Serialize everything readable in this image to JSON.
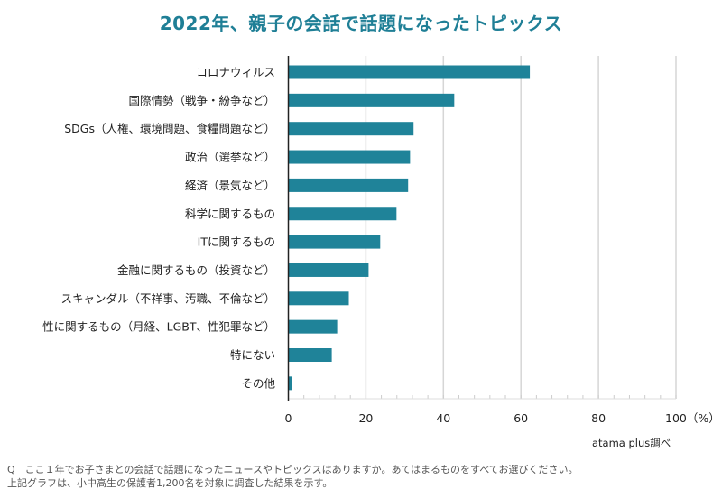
{
  "chart_data": {
    "type": "bar",
    "orientation": "horizontal",
    "title": "2022年、親子の会話で話題になったトピックス",
    "categories": [
      "コロナウィルス",
      "国際情勢（戦争・紛争など）",
      "SDGs（人権、環境問題、食糧問題など）",
      "政治（選挙など）",
      "経済（景気など）",
      "科学に関するもの",
      "ITに関するもの",
      "金融に関するもの（投資など）",
      "スキャンダル（不祥事、汚職、不倫など）",
      "性に関するもの（月経、LGBT、性犯罪など）",
      "特にない",
      "その他"
    ],
    "values": [
      62.3,
      42.8,
      32.3,
      31.4,
      30.9,
      27.9,
      23.7,
      20.7,
      15.6,
      12.6,
      11.2,
      0.9
    ],
    "xlim": [
      0,
      100
    ],
    "xticks": [
      "0",
      "20",
      "40",
      "60",
      "80",
      "100（%）"
    ],
    "grid": true,
    "bar_color": "#1f8399"
  },
  "source": "atama plus調べ",
  "note_lines": [
    "Q　ここ１年でお子さまとの会話で話題になったニュースやトピックスはありますか。あてはまるものをすべてお選びください。",
    "上記グラフは、小中高生の保護者1,200名を対象に調査した結果を示す。"
  ]
}
